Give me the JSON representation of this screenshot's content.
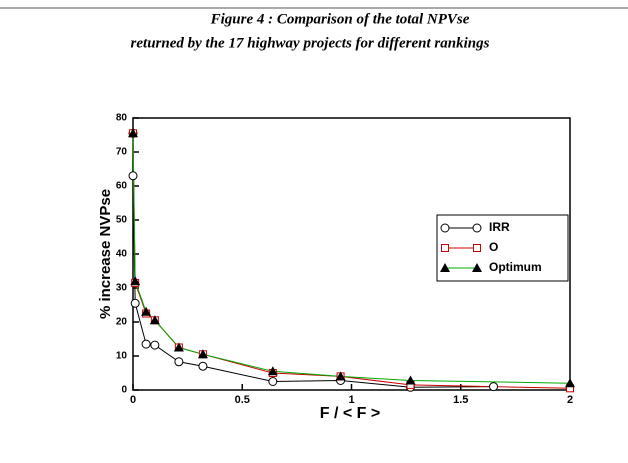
{
  "chart_data": {
    "type": "line",
    "title": "Figure 4 : Comparison of the total NPVse",
    "subtitle": "returned by the 17 highway projects for different rankings",
    "x_label": "F / < F >",
    "y_label": "% increase NVPse",
    "xlim": [
      0,
      2
    ],
    "xticks": [
      0,
      0.5,
      1,
      1.5,
      2
    ],
    "ylim": [
      0,
      80
    ],
    "yticks": [
      0,
      10,
      20,
      30,
      40,
      50,
      60,
      70,
      80
    ],
    "legend": "right",
    "series": [
      {
        "name": "IRR",
        "color": "#000000",
        "marker": "circle",
        "marker_color": "#000000",
        "x": [
          0,
          0,
          0.01,
          0.06,
          0.1,
          0.21,
          0.32,
          0.64,
          0.95,
          1.27,
          1.65
        ],
        "values": [
          75.5,
          63,
          25.5,
          13.5,
          13.2,
          8.3,
          7,
          2.5,
          2.8,
          0.8,
          1
        ]
      },
      {
        "name": "O",
        "color": "#cc0000",
        "marker": "square",
        "marker_color": "#cc0000",
        "x": [
          0,
          0.01,
          0.06,
          0.1,
          0.21,
          0.32,
          0.64,
          0.95,
          1.27,
          2
        ],
        "values": [
          75.5,
          31.5,
          22.5,
          20.5,
          12.5,
          10.5,
          5,
          4,
          1.5,
          0.5
        ]
      },
      {
        "name": "Optimum",
        "color": "#00aa00",
        "marker": "triangle",
        "marker_color": "#000000",
        "x": [
          0,
          0.01,
          0.06,
          0.1,
          0.21,
          0.32,
          0.64,
          0.95,
          1.27,
          2
        ],
        "values": [
          75.5,
          32,
          23,
          20.5,
          12.5,
          10.5,
          5.5,
          4,
          2.8,
          2
        ]
      }
    ]
  }
}
